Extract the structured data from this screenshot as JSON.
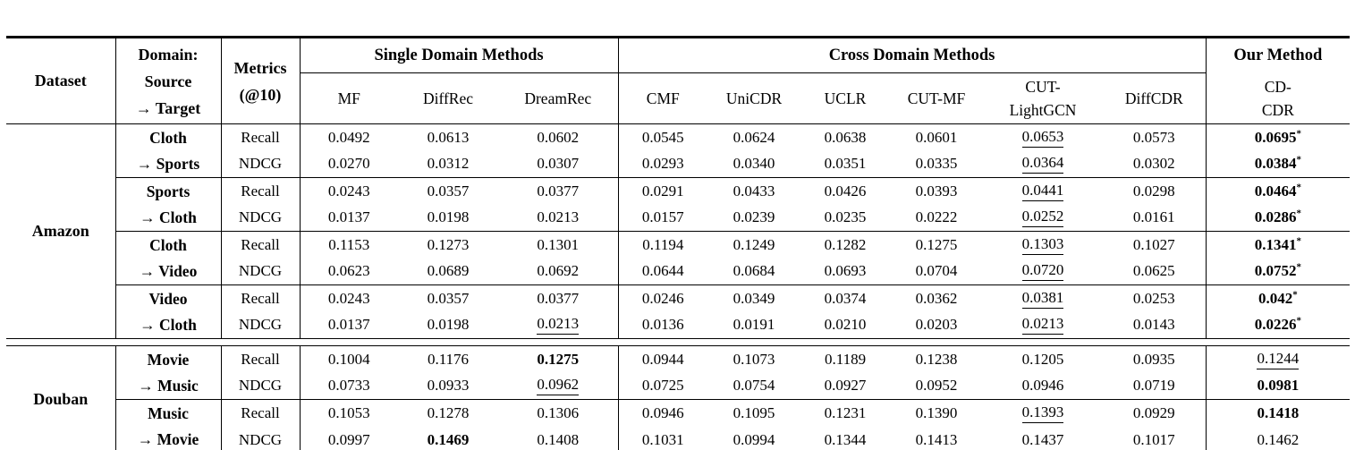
{
  "page": {
    "background": "#ffffff",
    "text_color": "#000000"
  },
  "table": {
    "header": {
      "dataset": "Dataset",
      "domain_lines": [
        "Domain:",
        "Source",
        "→ Target"
      ],
      "metrics_lines": [
        "Metrics",
        "(@10)"
      ],
      "groups": [
        {
          "label": "Single Domain Methods",
          "methods": [
            [
              "MF"
            ],
            [
              "DiffRec"
            ],
            [
              "DreamRec"
            ]
          ]
        },
        {
          "label": "Cross Domain Methods",
          "methods": [
            [
              "CMF"
            ],
            [
              "UniCDR"
            ],
            [
              "UCLR"
            ],
            [
              "CUT-MF"
            ],
            [
              "CUT-",
              "LightGCN"
            ],
            [
              "DiffCDR"
            ]
          ]
        },
        {
          "label": "Our Method",
          "methods": [
            [
              "CD-",
              "CDR"
            ]
          ]
        }
      ]
    },
    "sections": [
      {
        "dataset": "Amazon",
        "pairs": [
          {
            "source": "Cloth",
            "target": "→ Sports",
            "rows": [
              {
                "metric": "Recall",
                "values": [
                  "0.0492",
                  "0.0613",
                  "0.0602",
                  "0.0545",
                  "0.0624",
                  "0.0638",
                  "0.0601",
                  "0.0653",
                  "0.0573",
                  "0.0695"
                ],
                "underline": [
                  7
                ],
                "bold": [
                  9
                ],
                "star": [
                  9
                ]
              },
              {
                "metric": "NDCG",
                "values": [
                  "0.0270",
                  "0.0312",
                  "0.0307",
                  "0.0293",
                  "0.0340",
                  "0.0351",
                  "0.0335",
                  "0.0364",
                  "0.0302",
                  "0.0384"
                ],
                "underline": [
                  7
                ],
                "bold": [
                  9
                ],
                "star": [
                  9
                ]
              }
            ]
          },
          {
            "source": "Sports",
            "target": "→ Cloth",
            "rows": [
              {
                "metric": "Recall",
                "values": [
                  "0.0243",
                  "0.0357",
                  "0.0377",
                  "0.0291",
                  "0.0433",
                  "0.0426",
                  "0.0393",
                  "0.0441",
                  "0.0298",
                  "0.0464"
                ],
                "underline": [
                  7
                ],
                "bold": [
                  9
                ],
                "star": [
                  9
                ]
              },
              {
                "metric": "NDCG",
                "values": [
                  "0.0137",
                  "0.0198",
                  "0.0213",
                  "0.0157",
                  "0.0239",
                  "0.0235",
                  "0.0222",
                  "0.0252",
                  "0.0161",
                  "0.0286"
                ],
                "underline": [
                  7
                ],
                "bold": [
                  9
                ],
                "star": [
                  9
                ]
              }
            ]
          },
          {
            "source": "Cloth",
            "target": "→ Video",
            "rows": [
              {
                "metric": "Recall",
                "values": [
                  "0.1153",
                  "0.1273",
                  "0.1301",
                  "0.1194",
                  "0.1249",
                  "0.1282",
                  "0.1275",
                  "0.1303",
                  "0.1027",
                  "0.1341"
                ],
                "underline": [
                  7
                ],
                "bold": [
                  9
                ],
                "star": [
                  9
                ]
              },
              {
                "metric": "NDCG",
                "values": [
                  "0.0623",
                  "0.0689",
                  "0.0692",
                  "0.0644",
                  "0.0684",
                  "0.0693",
                  "0.0704",
                  "0.0720",
                  "0.0625",
                  "0.0752"
                ],
                "underline": [
                  7
                ],
                "bold": [
                  9
                ],
                "star": [
                  9
                ]
              }
            ]
          },
          {
            "source": "Video",
            "target": "→ Cloth",
            "rows": [
              {
                "metric": "Recall",
                "values": [
                  "0.0243",
                  "0.0357",
                  "0.0377",
                  "0.0246",
                  "0.0349",
                  "0.0374",
                  "0.0362",
                  "0.0381",
                  "0.0253",
                  "0.042"
                ],
                "underline": [
                  7
                ],
                "bold": [
                  9
                ],
                "star": [
                  9
                ]
              },
              {
                "metric": "NDCG",
                "values": [
                  "0.0137",
                  "0.0198",
                  "0.0213",
                  "0.0136",
                  "0.0191",
                  "0.0210",
                  "0.0203",
                  "0.0213",
                  "0.0143",
                  "0.0226"
                ],
                "underline": [
                  2,
                  7
                ],
                "bold": [
                  9
                ],
                "star": [
                  9
                ]
              }
            ]
          }
        ]
      },
      {
        "dataset": "Douban",
        "pairs": [
          {
            "source": "Movie",
            "target": "→ Music",
            "rows": [
              {
                "metric": "Recall",
                "values": [
                  "0.1004",
                  "0.1176",
                  "0.1275",
                  "0.0944",
                  "0.1073",
                  "0.1189",
                  "0.1238",
                  "0.1205",
                  "0.0935",
                  "0.1244"
                ],
                "underline": [
                  9
                ],
                "bold": [
                  2
                ],
                "star": []
              },
              {
                "metric": "NDCG",
                "values": [
                  "0.0733",
                  "0.0933",
                  "0.0962",
                  "0.0725",
                  "0.0754",
                  "0.0927",
                  "0.0952",
                  "0.0946",
                  "0.0719",
                  "0.0981"
                ],
                "underline": [
                  2
                ],
                "bold": [
                  9
                ],
                "star": []
              }
            ]
          },
          {
            "source": "Music",
            "target": "→ Movie",
            "rows": [
              {
                "metric": "Recall",
                "values": [
                  "0.1053",
                  "0.1278",
                  "0.1306",
                  "0.0946",
                  "0.1095",
                  "0.1231",
                  "0.1390",
                  "0.1393",
                  "0.0929",
                  "0.1418"
                ],
                "underline": [
                  7
                ],
                "bold": [
                  9
                ],
                "star": []
              },
              {
                "metric": "NDCG",
                "values": [
                  "0.0997",
                  "0.1469",
                  "0.1408",
                  "0.1031",
                  "0.0994",
                  "0.1344",
                  "0.1413",
                  "0.1437",
                  "0.1017",
                  "0.1462"
                ],
                "underline": [],
                "bold": [
                  1
                ],
                "star": []
              }
            ]
          }
        ]
      }
    ]
  }
}
